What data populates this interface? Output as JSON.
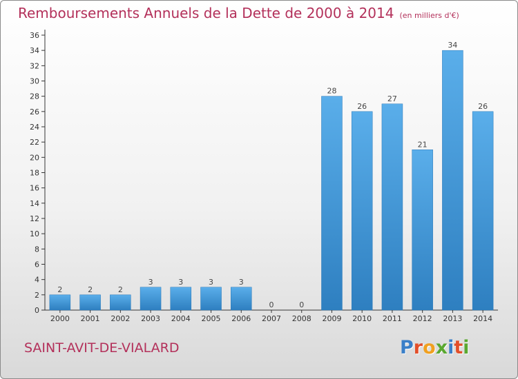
{
  "title": "Remboursements Annuels de la Dette de 2000 à 2014",
  "unit": "(en milliers d'€)",
  "commune": "SAINT-AVIT-DE-VIALARD",
  "logo": {
    "letters": [
      "P",
      "r",
      "o",
      "x",
      "i",
      "t",
      "i"
    ],
    "colors": [
      "#3a7fc8",
      "#e24f2a",
      "#f0a020",
      "#5aa830",
      "#3a7fc8",
      "#e24f2a",
      "#5aa830"
    ]
  },
  "colors": {
    "bar": "#4a9ee0",
    "bar_dark": "#2e7fc0",
    "title": "#b3305a"
  },
  "chart_data": {
    "type": "bar",
    "title": "Remboursements Annuels de la Dette de 2000 à 2014",
    "categories": [
      "2000",
      "2001",
      "2002",
      "2003",
      "2004",
      "2005",
      "2006",
      "2007",
      "2008",
      "2009",
      "2010",
      "2011",
      "2012",
      "2013",
      "2014"
    ],
    "values": [
      2,
      2,
      2,
      3,
      3,
      3,
      3,
      0,
      0,
      28,
      26,
      27,
      21,
      34,
      26
    ],
    "ylim": [
      0,
      36
    ],
    "yticks": [
      "0",
      "2",
      "4",
      "6",
      "8",
      "10",
      "12",
      "14",
      "16",
      "18",
      "20",
      "22",
      "24",
      "26",
      "28",
      "30",
      "32",
      "34",
      "36"
    ],
    "grid": false
  }
}
